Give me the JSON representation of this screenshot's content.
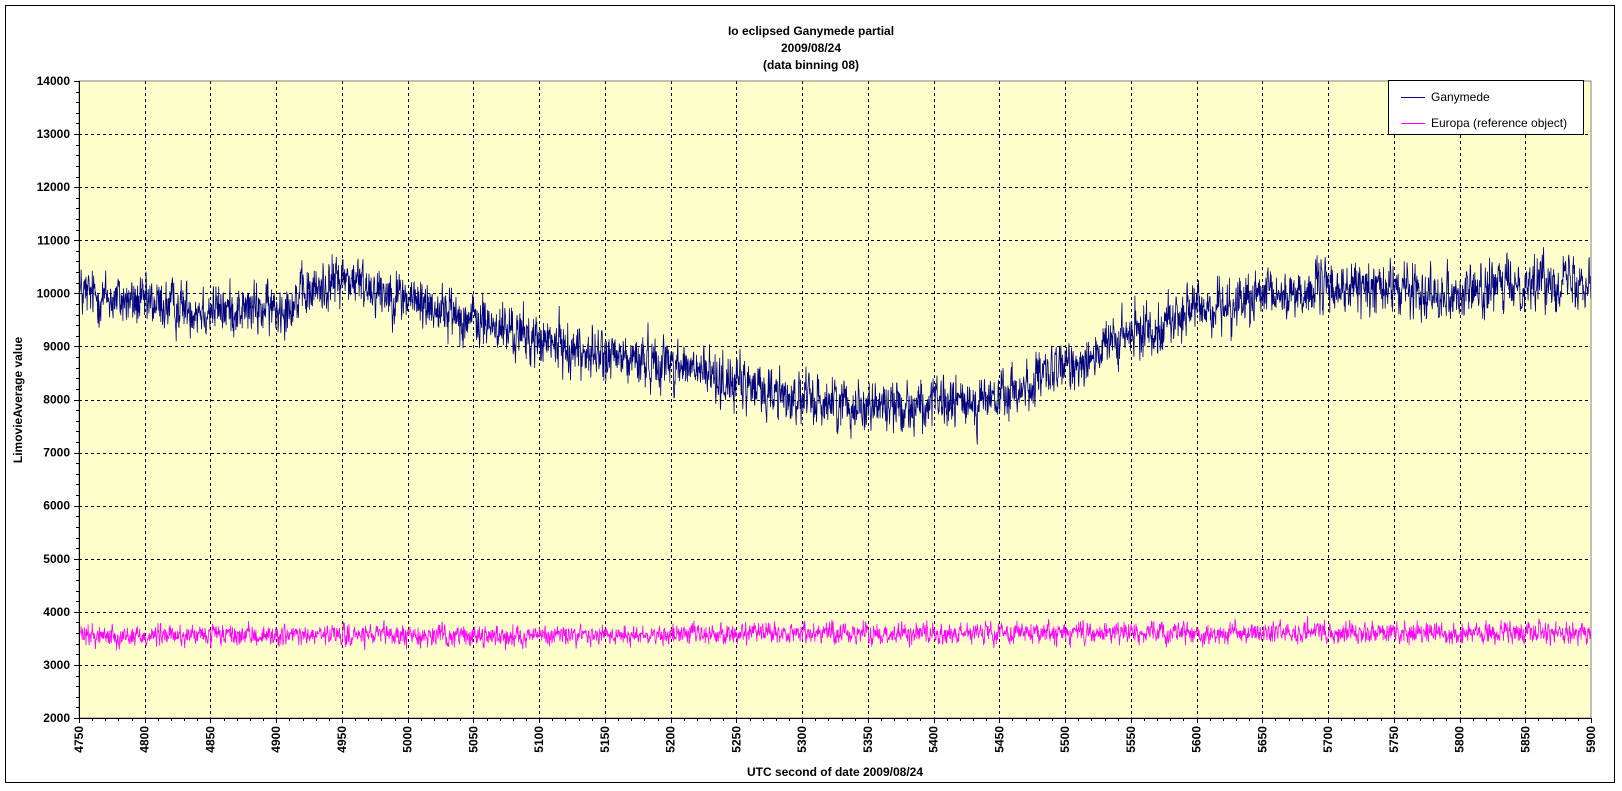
{
  "chart_data": {
    "type": "line",
    "title_lines": [
      "Io eclipsed Ganymede partial",
      "2009/08/24",
      "(data binning 08)"
    ],
    "xlabel": "UTC second  of date 2009/08/24",
    "ylabel": "LimovieAverage value",
    "xlim": [
      4750,
      5900
    ],
    "ylim": [
      2000,
      14000
    ],
    "x_ticks": [
      4750,
      4800,
      4850,
      4900,
      4950,
      5000,
      5050,
      5100,
      5150,
      5200,
      5250,
      5300,
      5350,
      5400,
      5450,
      5500,
      5550,
      5600,
      5650,
      5700,
      5750,
      5800,
      5850,
      5900
    ],
    "y_ticks": [
      2000,
      3000,
      4000,
      5000,
      6000,
      7000,
      8000,
      9000,
      10000,
      11000,
      12000,
      13000,
      14000
    ],
    "grid": true,
    "legend_position": "top-right",
    "plot_background": "#ffffcc",
    "series": [
      {
        "name": "Ganymede",
        "color": "#000080",
        "sampling_step": 0.267,
        "noise_amplitude": 1050,
        "trend": [
          [
            4750,
            10000
          ],
          [
            4800,
            9800
          ],
          [
            4850,
            9700
          ],
          [
            4900,
            9700
          ],
          [
            4950,
            10300
          ],
          [
            5000,
            9900
          ],
          [
            5050,
            9500
          ],
          [
            5100,
            9100
          ],
          [
            5150,
            8800
          ],
          [
            5200,
            8700
          ],
          [
            5250,
            8300
          ],
          [
            5300,
            8000
          ],
          [
            5350,
            7900
          ],
          [
            5400,
            7900
          ],
          [
            5450,
            8000
          ],
          [
            5500,
            8600
          ],
          [
            5550,
            9200
          ],
          [
            5600,
            9700
          ],
          [
            5650,
            9900
          ],
          [
            5700,
            10100
          ],
          [
            5750,
            10100
          ],
          [
            5800,
            10000
          ],
          [
            5850,
            10200
          ],
          [
            5900,
            10300
          ]
        ]
      },
      {
        "name": "Europa (reference object)",
        "color": "#ff00ff",
        "sampling_step": 0.267,
        "noise_amplitude": 420,
        "trend": [
          [
            4750,
            3550
          ],
          [
            4900,
            3550
          ],
          [
            5100,
            3550
          ],
          [
            5300,
            3600
          ],
          [
            5500,
            3600
          ],
          [
            5700,
            3600
          ],
          [
            5900,
            3600
          ]
        ]
      }
    ]
  }
}
